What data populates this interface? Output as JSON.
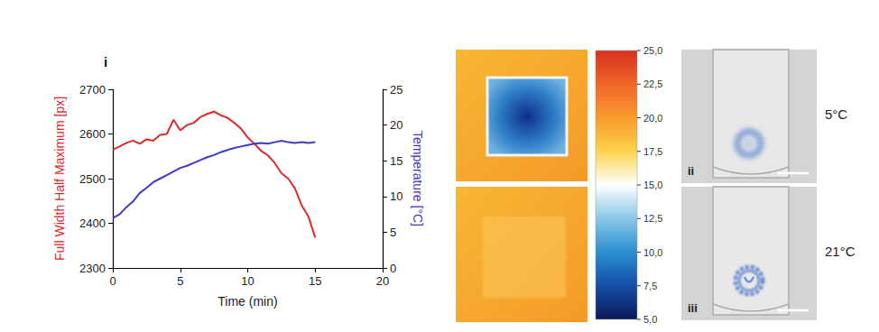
{
  "chart_data": {
    "type": "line",
    "panel_label": "i",
    "x_label": "Time (min)",
    "y_label": "Full Width Half Maximum [px]",
    "y2_label": "Temperature [°C]",
    "x": [
      0,
      0.5,
      1,
      1.5,
      2,
      2.5,
      3,
      3.5,
      4,
      4.5,
      5,
      5.5,
      6,
      6.5,
      7,
      7.5,
      8,
      8.5,
      9,
      9.5,
      10,
      10.5,
      11,
      11.5,
      12,
      12.5,
      13,
      13.5,
      14,
      14.5,
      15
    ],
    "series": [
      {
        "name": "Full Width Half Maximum",
        "color": "#e02a2a",
        "axis": "y",
        "values": [
          2565,
          2572,
          2580,
          2585,
          2578,
          2588,
          2585,
          2598,
          2600,
          2632,
          2608,
          2620,
          2625,
          2638,
          2645,
          2650,
          2642,
          2636,
          2625,
          2612,
          2592,
          2578,
          2562,
          2552,
          2535,
          2512,
          2500,
          2478,
          2440,
          2415,
          2368
        ]
      },
      {
        "name": "Temperature",
        "color": "#3b3bc8",
        "axis": "y2",
        "values": [
          7.0,
          7.5,
          8.5,
          9.3,
          10.5,
          11.2,
          12.0,
          12.5,
          13.0,
          13.5,
          14.0,
          14.3,
          14.7,
          15.1,
          15.5,
          15.8,
          16.2,
          16.5,
          16.8,
          17.0,
          17.2,
          17.4,
          17.5,
          17.4,
          17.6,
          17.8,
          17.6,
          17.5,
          17.6,
          17.5,
          17.6
        ]
      }
    ],
    "xlim": [
      0,
      20
    ],
    "xticks": [
      0,
      5,
      10,
      15,
      20
    ],
    "ylim": [
      2300,
      2700
    ],
    "yticks": [
      2300,
      2400,
      2500,
      2600,
      2700
    ],
    "y2lim": [
      0,
      25
    ],
    "y2ticks": [
      0,
      5,
      10,
      15,
      20,
      25
    ],
    "grid": false
  },
  "thermal_panel": {
    "colorbar": {
      "range": [
        5,
        25
      ],
      "ticks": [
        {
          "value": 25,
          "label": "25,0"
        },
        {
          "value": 22.5,
          "label": "22,5"
        },
        {
          "value": 20,
          "label": "20,0"
        },
        {
          "value": 17.5,
          "label": "17,5"
        },
        {
          "value": 15,
          "label": "15,0"
        },
        {
          "value": 12.5,
          "label": "12,5"
        },
        {
          "value": 10,
          "label": "10,0"
        },
        {
          "value": 7.5,
          "label": "7,5"
        },
        {
          "value": 5,
          "label": "5,0"
        }
      ]
    }
  },
  "photos": [
    {
      "label": "ii",
      "temperature": "5°C"
    },
    {
      "label": "iii",
      "temperature": "21°C"
    }
  ]
}
